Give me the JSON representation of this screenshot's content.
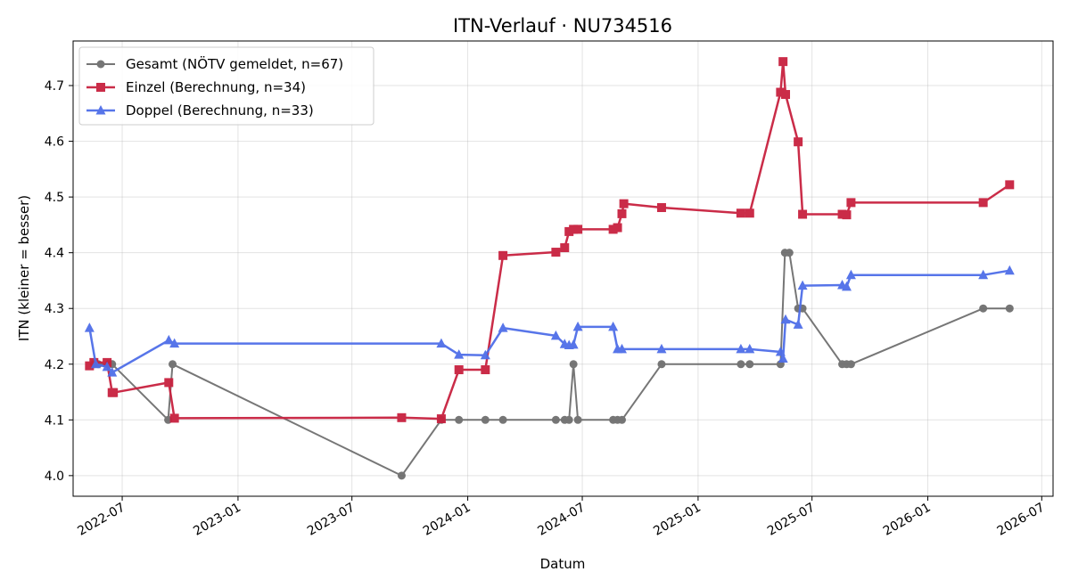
{
  "chart_data": {
    "type": "line",
    "title": "ITN-Verlauf · NU734516",
    "xlabel": "Datum",
    "ylabel": "ITN  (kleiner = besser)",
    "ylim": [
      3.963,
      4.78
    ],
    "xlim": [
      "2022-04-14",
      "2026-07-19"
    ],
    "yticks": [
      4.0,
      4.1,
      4.2,
      4.3,
      4.4,
      4.5,
      4.6,
      4.7
    ],
    "ytick_labels": [
      "4.0",
      "4.1",
      "4.2",
      "4.3",
      "4.4",
      "4.5",
      "4.6",
      "4.7"
    ],
    "xticks": [
      "2022-07-01",
      "2023-01-01",
      "2023-07-01",
      "2024-01-01",
      "2024-07-01",
      "2025-01-01",
      "2025-07-01",
      "2026-01-01",
      "2026-07-01"
    ],
    "xtick_labels": [
      "2022-07",
      "2023-01",
      "2023-07",
      "2024-01",
      "2024-07",
      "2025-01",
      "2025-07",
      "2026-01",
      "2026-07"
    ],
    "grid": true,
    "legend_position": "top-left",
    "series": [
      {
        "name": "Gesamt (NÖTV gemeldet, n=67)",
        "color": "#555555",
        "marker": "circle",
        "points": [
          [
            "2022-05-17",
            4.2
          ],
          [
            "2022-05-24",
            4.2
          ],
          [
            "2022-06-09",
            4.2
          ],
          [
            "2022-06-15",
            4.2
          ],
          [
            "2022-09-12",
            4.1
          ],
          [
            "2022-09-19",
            4.2
          ],
          [
            "2023-09-18",
            4.0
          ],
          [
            "2023-11-20",
            4.1
          ],
          [
            "2023-12-18",
            4.1
          ],
          [
            "2024-01-29",
            4.1
          ],
          [
            "2024-02-26",
            4.1
          ],
          [
            "2024-05-20",
            4.1
          ],
          [
            "2024-06-03",
            4.1
          ],
          [
            "2024-06-10",
            4.1
          ],
          [
            "2024-06-17",
            4.2
          ],
          [
            "2024-06-24",
            4.1
          ],
          [
            "2024-08-19",
            4.1
          ],
          [
            "2024-08-26",
            4.1
          ],
          [
            "2024-09-02",
            4.1
          ],
          [
            "2024-11-04",
            4.2
          ],
          [
            "2025-03-10",
            4.2
          ],
          [
            "2025-03-24",
            4.2
          ],
          [
            "2025-05-12",
            4.2
          ],
          [
            "2025-05-19",
            4.4
          ],
          [
            "2025-05-26",
            4.4
          ],
          [
            "2025-06-09",
            4.3
          ],
          [
            "2025-06-16",
            4.3
          ],
          [
            "2025-08-18",
            4.2
          ],
          [
            "2025-08-25",
            4.2
          ],
          [
            "2025-09-01",
            4.2
          ],
          [
            "2026-03-30",
            4.3
          ],
          [
            "2026-05-11",
            4.3
          ]
        ]
      },
      {
        "name": "Einzel (Berechnung, n=34)",
        "color": "#c8213f",
        "marker": "square",
        "points": [
          [
            "2022-05-10",
            4.197
          ],
          [
            "2022-05-17",
            4.203
          ],
          [
            "2022-06-07",
            4.203
          ],
          [
            "2022-06-15",
            4.149
          ],
          [
            "2022-06-17",
            4.149
          ],
          [
            "2022-09-13",
            4.167
          ],
          [
            "2022-09-22",
            4.103
          ],
          [
            "2023-09-18",
            4.104
          ],
          [
            "2023-11-20",
            4.102
          ],
          [
            "2023-12-18",
            4.19
          ],
          [
            "2024-01-29",
            4.19
          ],
          [
            "2024-02-26",
            4.395
          ],
          [
            "2024-05-20",
            4.401
          ],
          [
            "2024-06-03",
            4.409
          ],
          [
            "2024-06-10",
            4.438
          ],
          [
            "2024-06-17",
            4.442
          ],
          [
            "2024-06-24",
            4.442
          ],
          [
            "2024-08-19",
            4.442
          ],
          [
            "2024-08-26",
            4.445
          ],
          [
            "2024-09-02",
            4.47
          ],
          [
            "2024-09-05",
            4.488
          ],
          [
            "2024-11-04",
            4.481
          ],
          [
            "2025-03-10",
            4.471
          ],
          [
            "2025-03-24",
            4.471
          ],
          [
            "2025-05-12",
            4.688
          ],
          [
            "2025-05-16",
            4.743
          ],
          [
            "2025-05-20",
            4.684
          ],
          [
            "2025-06-09",
            4.599
          ],
          [
            "2025-06-16",
            4.469
          ],
          [
            "2025-08-18",
            4.469
          ],
          [
            "2025-08-25",
            4.468
          ],
          [
            "2025-09-01",
            4.49
          ],
          [
            "2026-03-30",
            4.49
          ],
          [
            "2026-05-11",
            4.522
          ]
        ]
      },
      {
        "name": "Doppel (Berechnung, n=33)",
        "color": "#4f6ee8",
        "marker": "triangle",
        "points": [
          [
            "2022-05-10",
            4.265
          ],
          [
            "2022-05-20",
            4.2
          ],
          [
            "2022-06-07",
            4.195
          ],
          [
            "2022-06-15",
            4.185
          ],
          [
            "2022-09-13",
            4.243
          ],
          [
            "2022-09-22",
            4.237
          ],
          [
            "2023-11-20",
            4.237
          ],
          [
            "2023-12-18",
            4.217
          ],
          [
            "2024-01-29",
            4.216
          ],
          [
            "2024-02-26",
            4.265
          ],
          [
            "2024-05-20",
            4.251
          ],
          [
            "2024-06-03",
            4.236
          ],
          [
            "2024-06-10",
            4.234
          ],
          [
            "2024-06-17",
            4.235
          ],
          [
            "2024-06-24",
            4.267
          ],
          [
            "2024-08-19",
            4.267
          ],
          [
            "2024-08-26",
            4.227
          ],
          [
            "2024-09-02",
            4.227
          ],
          [
            "2024-11-04",
            4.227
          ],
          [
            "2025-03-10",
            4.227
          ],
          [
            "2025-03-24",
            4.227
          ],
          [
            "2025-05-12",
            4.222
          ],
          [
            "2025-05-16",
            4.21
          ],
          [
            "2025-05-20",
            4.28
          ],
          [
            "2025-06-09",
            4.271
          ],
          [
            "2025-06-16",
            4.341
          ],
          [
            "2025-08-18",
            4.342
          ],
          [
            "2025-08-25",
            4.339
          ],
          [
            "2025-09-01",
            4.36
          ],
          [
            "2026-03-30",
            4.36
          ],
          [
            "2026-05-11",
            4.368
          ]
        ]
      }
    ]
  }
}
